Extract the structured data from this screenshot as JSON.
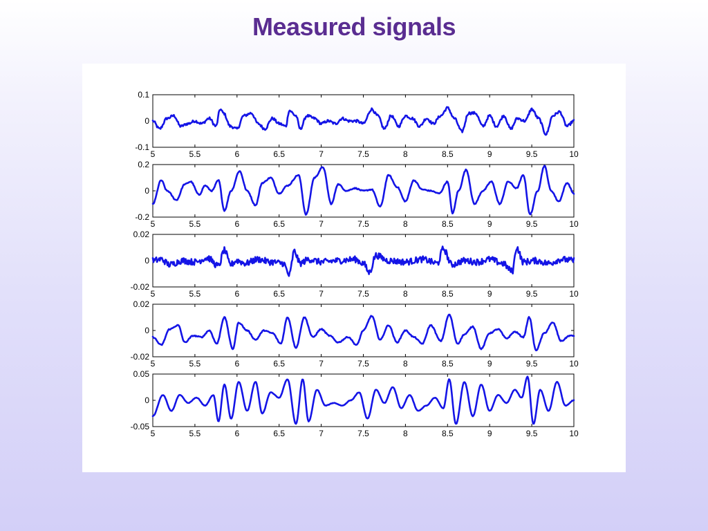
{
  "slide": {
    "title": "Measured signals"
  },
  "colors": {
    "title": "#5a2d91",
    "line": "#1414e6",
    "axes": "#000000",
    "panel": "#ffffff"
  },
  "chart_data": [
    {
      "type": "line",
      "xlim": [
        5,
        10
      ],
      "ylim": [
        -0.1,
        0.1
      ],
      "x_ticks": [
        "5",
        "5.5",
        "6",
        "6.5",
        "7",
        "7.5",
        "8",
        "8.5",
        "9",
        "9.5",
        "10"
      ],
      "y_ticks": [
        "-0.1",
        "0",
        "0.1"
      ],
      "grid": false,
      "noise": 0.005,
      "x": [
        5,
        5.08,
        5.17,
        5.25,
        5.33,
        5.42,
        5.5,
        5.58,
        5.67,
        5.75,
        5.8,
        5.84,
        5.92,
        6.0,
        6.08,
        6.17,
        6.25,
        6.33,
        6.42,
        6.5,
        6.58,
        6.62,
        6.7,
        6.75,
        6.83,
        6.92,
        7.0,
        7.08,
        7.17,
        7.25,
        7.33,
        7.42,
        7.5,
        7.6,
        7.67,
        7.75,
        7.83,
        7.92,
        8.0,
        8.08,
        8.17,
        8.25,
        8.33,
        8.42,
        8.5,
        8.58,
        8.67,
        8.75,
        8.83,
        8.92,
        9.0,
        9.08,
        9.17,
        9.25,
        9.33,
        9.42,
        9.5,
        9.58,
        9.67,
        9.75,
        9.83,
        9.92,
        10.0
      ],
      "y": [
        0.0,
        -0.03,
        0.01,
        0.02,
        -0.02,
        -0.01,
        0.0,
        -0.01,
        0.01,
        -0.02,
        0.045,
        0.03,
        -0.02,
        -0.03,
        0.02,
        0.03,
        -0.01,
        -0.03,
        0.01,
        -0.01,
        -0.02,
        0.04,
        0.02,
        -0.03,
        0.02,
        0.01,
        -0.01,
        0.0,
        -0.01,
        0.01,
        0.0,
        0.0,
        -0.01,
        0.045,
        0.02,
        -0.03,
        0.02,
        -0.02,
        0.02,
        0.01,
        -0.02,
        0.01,
        -0.01,
        0.02,
        0.05,
        0.01,
        -0.04,
        0.03,
        0.03,
        -0.02,
        0.02,
        -0.02,
        0.02,
        -0.03,
        0.01,
        0.0,
        0.045,
        0.01,
        -0.05,
        0.02,
        0.035,
        -0.02,
        0.0
      ]
    },
    {
      "type": "line",
      "xlim": [
        5,
        10
      ],
      "ylim": [
        -0.2,
        0.2
      ],
      "x_ticks": [
        "5",
        "5.5",
        "6",
        "6.5",
        "7",
        "7.5",
        "8",
        "8.5",
        "9",
        "9.5",
        "10"
      ],
      "y_ticks": [
        "-0.2",
        "0",
        "0.2"
      ],
      "grid": false,
      "noise": 0.004,
      "x": [
        5,
        5.1,
        5.17,
        5.28,
        5.38,
        5.45,
        5.55,
        5.62,
        5.7,
        5.78,
        5.85,
        5.93,
        6.03,
        6.12,
        6.22,
        6.3,
        6.4,
        6.5,
        6.6,
        6.73,
        6.82,
        6.92,
        7.02,
        7.12,
        7.2,
        7.3,
        7.4,
        7.5,
        7.6,
        7.7,
        7.8,
        7.9,
        8.0,
        8.1,
        8.2,
        8.3,
        8.4,
        8.5,
        8.56,
        8.63,
        8.72,
        8.82,
        8.92,
        9.02,
        9.12,
        9.22,
        9.32,
        9.4,
        9.48,
        9.57,
        9.65,
        9.73,
        9.82,
        9.92,
        10.0
      ],
      "y": [
        -0.1,
        0.08,
        0.0,
        -0.07,
        0.05,
        0.07,
        -0.03,
        0.04,
        0.0,
        0.08,
        -0.15,
        0.0,
        0.15,
        0.0,
        -0.11,
        0.06,
        0.1,
        -0.02,
        0.04,
        0.12,
        -0.18,
        0.1,
        0.18,
        -0.1,
        0.05,
        0.0,
        0.02,
        0.0,
        0.01,
        -0.12,
        0.12,
        0.03,
        -0.08,
        0.08,
        0.01,
        0.0,
        -0.02,
        0.07,
        -0.17,
        0.0,
        0.16,
        -0.1,
        0.0,
        0.07,
        -0.1,
        0.07,
        0.02,
        0.12,
        -0.18,
        0.0,
        0.19,
        0.0,
        -0.08,
        0.06,
        -0.02
      ]
    },
    {
      "type": "line",
      "xlim": [
        5,
        10
      ],
      "ylim": [
        -0.02,
        0.02
      ],
      "x_ticks": [
        "5",
        "5.5",
        "6",
        "6.5",
        "7",
        "7.5",
        "8",
        "8.5",
        "9",
        "9.5",
        "10"
      ],
      "y_ticks": [
        "-0.02",
        "0",
        "0.02"
      ],
      "grid": false,
      "noise": 0.0024,
      "x": [
        5,
        5.1,
        5.2,
        5.35,
        5.5,
        5.65,
        5.78,
        5.85,
        5.92,
        6.0,
        6.1,
        6.25,
        6.4,
        6.55,
        6.62,
        6.68,
        6.75,
        6.85,
        7.0,
        7.2,
        7.4,
        7.5,
        7.57,
        7.65,
        7.8,
        8.0,
        8.2,
        8.38,
        8.45,
        8.55,
        8.7,
        8.85,
        9.0,
        9.15,
        9.27,
        9.32,
        9.4,
        9.55,
        9.7,
        9.85,
        10.0
      ],
      "y": [
        0.0,
        0.001,
        -0.003,
        0.0,
        -0.001,
        0.002,
        -0.004,
        0.008,
        -0.003,
        0.0,
        -0.002,
        0.001,
        -0.001,
        -0.002,
        -0.011,
        0.007,
        -0.002,
        0.001,
        -0.001,
        0.0,
        0.001,
        -0.002,
        -0.009,
        0.004,
        0.0,
        -0.001,
        0.001,
        -0.002,
        0.009,
        -0.003,
        0.0,
        -0.001,
        0.001,
        -0.002,
        -0.008,
        0.01,
        -0.001,
        0.0,
        -0.002,
        0.001,
        0.0
      ]
    },
    {
      "type": "line",
      "xlim": [
        5,
        10
      ],
      "ylim": [
        -0.02,
        0.02
      ],
      "x_ticks": [
        "5",
        "5.5",
        "6",
        "6.5",
        "7",
        "7.5",
        "8",
        "8.5",
        "9",
        "9.5",
        "10"
      ],
      "y_ticks": [
        "-0.02",
        "0",
        "0.02"
      ],
      "grid": false,
      "noise": 0.0004,
      "x": [
        5,
        5.1,
        5.2,
        5.3,
        5.38,
        5.48,
        5.58,
        5.67,
        5.76,
        5.85,
        5.95,
        6.02,
        6.12,
        6.22,
        6.32,
        6.42,
        6.52,
        6.6,
        6.7,
        6.8,
        6.9,
        7.0,
        7.1,
        7.2,
        7.32,
        7.42,
        7.5,
        7.6,
        7.7,
        7.8,
        7.9,
        8.0,
        8.1,
        8.2,
        8.3,
        8.42,
        8.52,
        8.62,
        8.7,
        8.8,
        8.9,
        9.0,
        9.1,
        9.2,
        9.3,
        9.4,
        9.47,
        9.55,
        9.65,
        9.75,
        9.85,
        9.95,
        10.0
      ],
      "y": [
        -0.005,
        -0.011,
        0.001,
        0.004,
        -0.009,
        -0.004,
        -0.005,
        0.0,
        -0.01,
        0.01,
        -0.014,
        0.006,
        0.0,
        -0.007,
        0.0,
        -0.002,
        -0.01,
        0.01,
        -0.013,
        0.01,
        -0.005,
        0.001,
        -0.004,
        -0.009,
        -0.005,
        -0.011,
        0.0,
        0.011,
        -0.007,
        0.004,
        -0.009,
        0.0,
        -0.005,
        -0.01,
        0.004,
        -0.008,
        0.012,
        -0.01,
        -0.003,
        0.003,
        -0.014,
        -0.002,
        0.001,
        -0.006,
        -0.001,
        -0.005,
        0.01,
        -0.015,
        -0.002,
        0.006,
        -0.008,
        -0.004,
        -0.004
      ]
    },
    {
      "type": "line",
      "xlim": [
        5,
        10
      ],
      "ylim": [
        -0.05,
        0.05
      ],
      "x_ticks": [
        "5",
        "5.5",
        "6",
        "6.5",
        "7",
        "7.5",
        "8",
        "8.5",
        "9",
        "9.5",
        "10"
      ],
      "y_ticks": [
        "-0.05",
        "0",
        "0.05"
      ],
      "grid": false,
      "noise": 0.0004,
      "x": [
        5,
        5.12,
        5.22,
        5.32,
        5.42,
        5.52,
        5.62,
        5.72,
        5.78,
        5.85,
        5.93,
        6.02,
        6.12,
        6.22,
        6.3,
        6.4,
        6.5,
        6.6,
        6.7,
        6.78,
        6.85,
        6.95,
        7.05,
        7.15,
        7.25,
        7.35,
        7.45,
        7.55,
        7.65,
        7.75,
        7.85,
        7.95,
        8.05,
        8.15,
        8.25,
        8.35,
        8.45,
        8.52,
        8.6,
        8.7,
        8.8,
        8.9,
        9.0,
        9.1,
        9.2,
        9.3,
        9.38,
        9.45,
        9.52,
        9.6,
        9.7,
        9.8,
        9.9,
        10.0
      ],
      "y": [
        -0.03,
        0.01,
        -0.02,
        0.01,
        -0.005,
        0.005,
        -0.01,
        0.01,
        -0.04,
        0.03,
        -0.035,
        0.035,
        -0.02,
        0.035,
        -0.025,
        0.015,
        0.005,
        0.04,
        -0.045,
        0.04,
        -0.04,
        0.02,
        -0.01,
        -0.005,
        -0.01,
        0.0,
        0.015,
        -0.035,
        0.02,
        -0.005,
        0.025,
        -0.015,
        0.01,
        -0.02,
        -0.01,
        0.005,
        -0.015,
        0.04,
        -0.045,
        0.035,
        -0.03,
        0.03,
        -0.02,
        0.01,
        -0.005,
        0.02,
        0.005,
        0.045,
        -0.045,
        0.02,
        -0.02,
        0.035,
        -0.01,
        0.0
      ]
    }
  ]
}
